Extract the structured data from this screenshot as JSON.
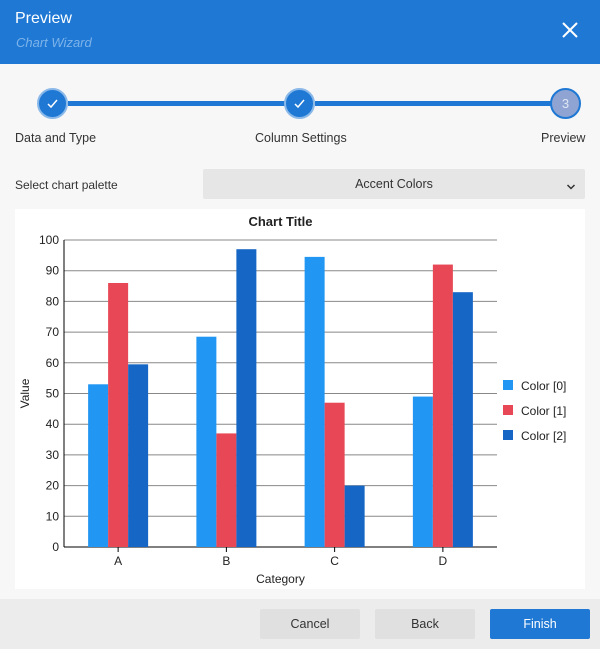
{
  "header": {
    "title": "Preview",
    "subtitle": "Chart Wizard",
    "close_icon": "close-icon"
  },
  "stepper": {
    "steps": [
      {
        "label": "Data and Type",
        "status": "done",
        "icon": "check-icon"
      },
      {
        "label": "Column Settings",
        "status": "done",
        "icon": "check-icon"
      },
      {
        "label": "Preview",
        "status": "current",
        "number": "3"
      }
    ]
  },
  "palette": {
    "label": "Select chart palette",
    "selected": "Accent Colors"
  },
  "colors": {
    "accent": "#1e78d4",
    "series": [
      "#2196f3",
      "#e84855",
      "#1666c5"
    ]
  },
  "chart_data": {
    "type": "bar",
    "title": "Chart Title",
    "xlabel": "Category",
    "ylabel": "Value",
    "categories": [
      "A",
      "B",
      "C",
      "D"
    ],
    "series": [
      {
        "name": "Color [0]",
        "values": [
          53,
          68.5,
          94.5,
          49
        ]
      },
      {
        "name": "Color [1]",
        "values": [
          86,
          37,
          47,
          92
        ]
      },
      {
        "name": "Color [2]",
        "values": [
          59.5,
          97,
          20,
          83
        ]
      }
    ],
    "ylim": [
      0,
      100
    ],
    "yticks": [
      0,
      10,
      20,
      30,
      40,
      50,
      60,
      70,
      80,
      90,
      100
    ],
    "grid": true,
    "legend": "right"
  },
  "footer": {
    "cancel_label": "Cancel",
    "back_label": "Back",
    "finish_label": "Finish"
  }
}
